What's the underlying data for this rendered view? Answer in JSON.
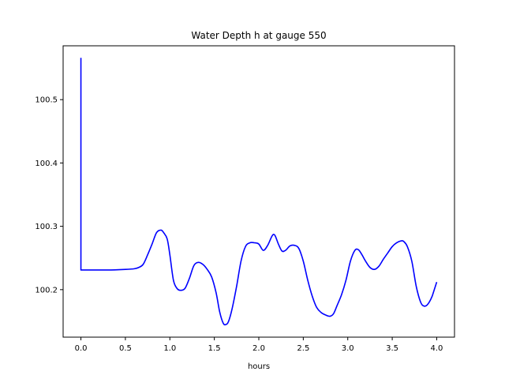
{
  "chart_data": {
    "type": "line",
    "title": "Water Depth h at gauge 550",
    "xlabel": "hours",
    "ylabel": "",
    "xlim": [
      -0.2,
      4.2
    ],
    "ylim": [
      100.125,
      100.585
    ],
    "x_ticks": [
      0.0,
      0.5,
      1.0,
      1.5,
      2.0,
      2.5,
      3.0,
      3.5,
      4.0
    ],
    "x_tick_labels": [
      "0.0",
      "0.5",
      "1.0",
      "1.5",
      "2.0",
      "2.5",
      "3.0",
      "3.5",
      "4.0"
    ],
    "y_ticks": [
      100.2,
      100.3,
      100.4,
      100.5
    ],
    "y_tick_labels": [
      "100.2",
      "100.3",
      "100.4",
      "100.5"
    ],
    "grid": false,
    "series": [
      {
        "color": "#0000ff",
        "x": [
          0.0,
          0.0,
          0.0,
          0.3,
          0.5,
          0.6,
          0.65,
          0.7,
          0.75,
          0.8,
          0.85,
          0.9,
          0.93,
          0.97,
          1.0,
          1.04,
          1.08,
          1.12,
          1.17,
          1.22,
          1.27,
          1.32,
          1.37,
          1.42,
          1.47,
          1.52,
          1.56,
          1.6,
          1.63,
          1.66,
          1.7,
          1.75,
          1.8,
          1.85,
          1.9,
          1.95,
          2.0,
          2.05,
          2.1,
          2.15,
          2.18,
          2.22,
          2.26,
          2.3,
          2.35,
          2.4,
          2.45,
          2.5,
          2.55,
          2.6,
          2.65,
          2.7,
          2.75,
          2.8,
          2.84,
          2.88,
          2.93,
          2.98,
          3.03,
          3.08,
          3.12,
          3.16,
          3.2,
          3.25,
          3.3,
          3.35,
          3.4,
          3.45,
          3.5,
          3.55,
          3.6,
          3.63,
          3.67,
          3.72,
          3.77,
          3.82,
          3.86,
          3.9,
          3.95,
          4.0
        ],
        "y": [
          100.566,
          100.4,
          100.231,
          100.231,
          100.232,
          100.233,
          100.235,
          100.24,
          100.255,
          100.272,
          100.29,
          100.294,
          100.29,
          100.28,
          100.255,
          100.215,
          100.202,
          100.199,
          100.202,
          100.218,
          100.238,
          100.243,
          100.24,
          100.232,
          100.22,
          100.195,
          100.165,
          100.147,
          100.145,
          100.15,
          100.17,
          100.205,
          100.245,
          100.268,
          100.274,
          100.274,
          100.272,
          100.262,
          100.27,
          100.285,
          100.286,
          100.272,
          100.261,
          100.262,
          100.269,
          100.27,
          100.265,
          100.245,
          100.215,
          100.19,
          100.172,
          100.164,
          100.16,
          100.158,
          100.162,
          100.175,
          100.192,
          100.215,
          100.245,
          100.262,
          100.263,
          100.255,
          100.245,
          100.235,
          100.232,
          100.237,
          100.248,
          100.258,
          100.268,
          100.274,
          100.277,
          100.276,
          100.268,
          100.245,
          100.205,
          100.18,
          100.174,
          100.177,
          100.19,
          100.212
        ]
      }
    ]
  }
}
